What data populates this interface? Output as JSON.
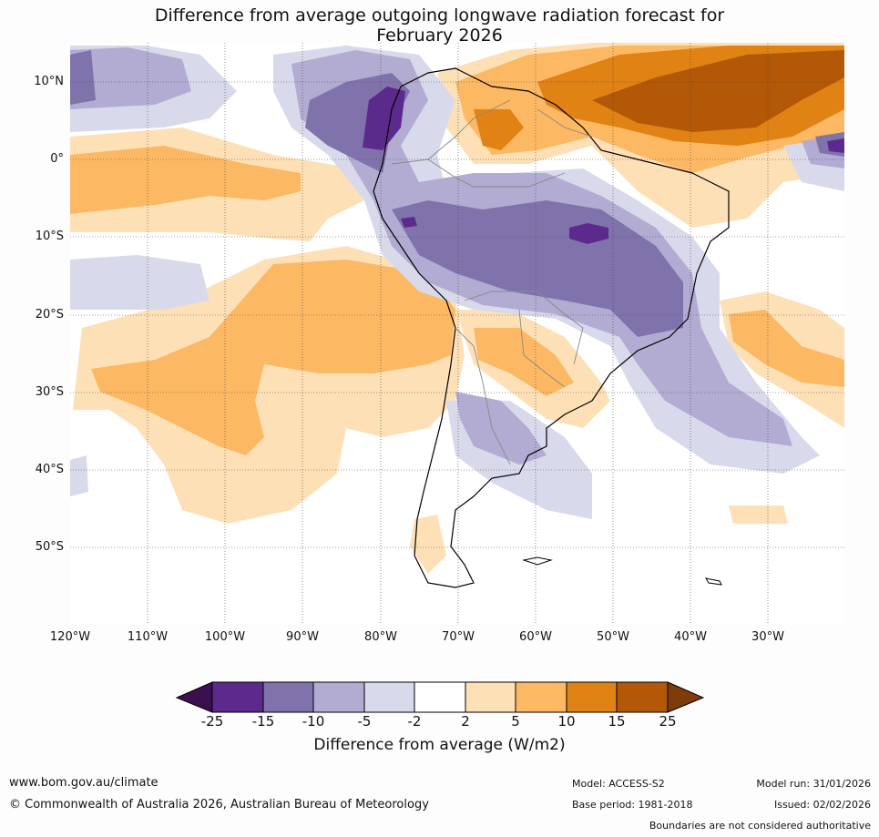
{
  "title": {
    "line1": "Difference from average outgoing longwave radiation forecast for",
    "line2": "February 2026"
  },
  "axes": {
    "lat_labels": [
      "10°N",
      "0°",
      "10°S",
      "20°S",
      "30°S",
      "40°S",
      "50°S"
    ],
    "lon_labels": [
      "120°W",
      "110°W",
      "100°W",
      "90°W",
      "80°W",
      "70°W",
      "60°W",
      "50°W",
      "40°W",
      "30°W"
    ]
  },
  "legend": {
    "ticks": [
      "-25",
      "-15",
      "-10",
      "-5",
      "-2",
      "2",
      "5",
      "10",
      "15",
      "25"
    ],
    "title": "Difference from average (W/m2)",
    "colors": [
      "#3b0f50",
      "#5c2a8c",
      "#8073ac",
      "#b2abd2",
      "#d8daeb",
      "#ffffff",
      "#fee0b6",
      "#fdb863",
      "#e08214",
      "#b35806",
      "#7f3b08"
    ]
  },
  "footer": {
    "url": "www.bom.gov.au/climate",
    "copyright": "© Commonwealth of Australia 2026, Australian Bureau of Meteorology",
    "model": "Model: ACCESS-S2",
    "base_period": "Base period: 1981-2018",
    "model_run": "Model run: 31/01/2026",
    "issued": "Issued: 02/02/2026",
    "disclaimer": "Boundaries are not considered authoritative"
  }
}
